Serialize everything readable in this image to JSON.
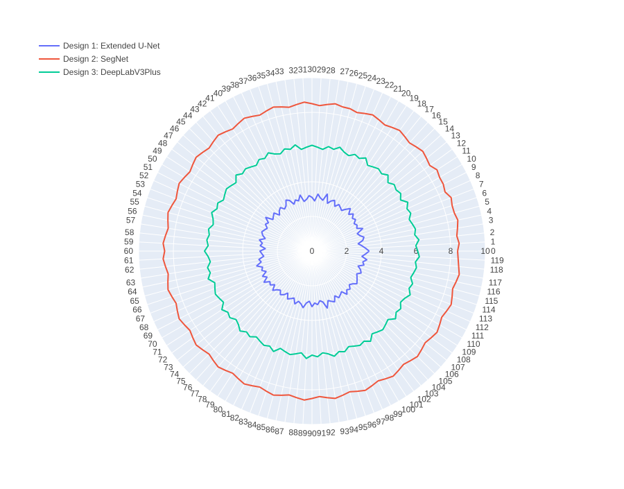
{
  "chart_data": {
    "type": "polar-line",
    "angular_unit": "category index (0-119, counterclockwise from 0 at east)",
    "theta_categories": [
      0,
      1,
      2,
      3,
      4,
      5,
      6,
      7,
      8,
      9,
      10,
      11,
      12,
      13,
      14,
      15,
      16,
      17,
      18,
      19,
      20,
      21,
      22,
      23,
      24,
      25,
      26,
      27,
      28,
      29,
      30,
      31,
      32,
      33,
      34,
      35,
      36,
      37,
      38,
      39,
      40,
      41,
      42,
      43,
      44,
      45,
      46,
      47,
      48,
      49,
      50,
      51,
      52,
      53,
      54,
      55,
      56,
      57,
      58,
      59,
      60,
      61,
      62,
      63,
      64,
      65,
      66,
      67,
      68,
      69,
      70,
      71,
      72,
      73,
      74,
      75,
      76,
      77,
      78,
      79,
      80,
      81,
      82,
      83,
      84,
      85,
      86,
      87,
      88,
      89,
      90,
      91,
      92,
      93,
      94,
      95,
      96,
      97,
      98,
      99,
      100,
      101,
      102,
      103,
      104,
      105,
      106,
      107,
      108,
      109,
      110,
      111,
      112,
      113,
      114,
      115,
      116,
      117,
      118,
      119
    ],
    "radial_range": [
      0,
      10
    ],
    "radial_ticks": [
      "0",
      "2",
      "4",
      "6",
      "8",
      "10"
    ],
    "legend_position": "top-left",
    "grid": true,
    "series": [
      {
        "name": "Design 1: Extended U-Net",
        "color": "#636efa",
        "r": [
          3.3,
          3.1,
          2.9,
          2.7,
          3.0,
          3.1,
          2.9,
          2.8,
          3.2,
          2.9,
          3.0,
          2.9,
          3.1,
          3.0,
          3.2,
          3.0,
          3.3,
          3.1,
          2.9,
          3.0,
          3.1,
          2.9,
          3.2,
          3.1,
          2.9,
          3.4,
          3.0,
          3.1,
          3.3,
          2.9,
          3.1,
          3.2,
          3.0,
          2.9,
          3.3,
          3.0,
          3.1,
          2.9,
          3.2,
          3.3,
          3.0,
          2.9,
          3.1,
          3.0,
          2.8,
          3.1,
          3.0,
          2.9,
          3.3,
          3.0,
          3.1,
          2.9,
          3.0,
          3.1,
          3.0,
          2.8,
          3.1,
          2.9,
          3.0,
          2.7,
          3.0,
          2.9,
          2.8,
          3.1,
          3.0,
          3.3,
          3.0,
          3.1,
          2.9,
          3.2,
          3.0,
          3.3,
          3.0,
          3.1,
          2.9,
          3.2,
          3.0,
          2.9,
          3.1,
          3.0,
          2.8,
          3.1,
          3.0,
          2.9,
          3.2,
          3.0,
          3.1,
          3.3,
          3.0,
          2.9,
          3.2,
          3.0,
          3.1,
          2.9,
          3.0,
          3.4,
          3.0,
          3.1,
          3.2,
          2.9,
          3.1,
          3.0,
          2.9,
          3.2,
          3.0,
          3.1,
          2.9,
          3.0,
          3.2,
          3.1,
          3.0,
          2.9,
          3.1,
          3.0,
          2.8,
          3.1,
          3.0,
          3.2,
          2.9,
          3.1
        ]
      },
      {
        "name": "Design 2: SegNet",
        "color": "#ef553b",
        "r": [
          8.4,
          8.5,
          8.4,
          8.5,
          8.6,
          8.5,
          8.5,
          8.6,
          8.4,
          8.5,
          8.5,
          8.6,
          8.4,
          8.5,
          8.6,
          8.5,
          8.4,
          8.5,
          8.6,
          8.5,
          8.4,
          8.5,
          8.6,
          8.5,
          8.4,
          8.5,
          8.5,
          8.6,
          8.5,
          8.4,
          8.5,
          8.6,
          8.5,
          8.4,
          8.5,
          8.6,
          8.5,
          8.4,
          8.5,
          8.6,
          8.5,
          8.4,
          8.5,
          8.6,
          8.5,
          8.4,
          8.5,
          8.6,
          8.5,
          8.4,
          8.5,
          8.6,
          8.5,
          8.4,
          8.5,
          8.6,
          8.5,
          8.4,
          8.5,
          8.6,
          8.5,
          8.6,
          8.5,
          8.4,
          8.5,
          8.6,
          8.5,
          8.4,
          8.5,
          8.6,
          8.5,
          8.4,
          8.5,
          8.6,
          8.5,
          8.4,
          8.5,
          8.6,
          8.5,
          8.4,
          8.5,
          8.6,
          8.5,
          8.4,
          8.5,
          8.6,
          8.5,
          8.4,
          8.5,
          8.6,
          8.5,
          8.4,
          8.5,
          8.6,
          8.5,
          8.4,
          8.5,
          8.6,
          8.5,
          8.4,
          8.5,
          8.6,
          8.5,
          8.4,
          8.5,
          8.6,
          8.5,
          8.4,
          8.5,
          8.6,
          8.5,
          8.4,
          8.5,
          8.6,
          8.5,
          8.4,
          8.5,
          8.6
        ]
      },
      {
        "name": "Design 3: DeepLabV3Plus",
        "color": "#00cc96",
        "r": [
          6.1,
          6.0,
          6.2,
          6.0,
          6.1,
          6.0,
          5.9,
          6.1,
          6.0,
          6.2,
          5.9,
          6.1,
          6.0,
          6.1,
          5.9,
          6.2,
          6.0,
          6.1,
          6.0,
          5.9,
          6.2,
          6.0,
          6.1,
          5.9,
          6.0,
          6.2,
          6.0,
          6.1,
          5.9,
          6.0,
          6.1,
          6.0,
          5.9,
          6.2,
          6.0,
          6.1,
          5.9,
          6.0,
          6.2,
          6.0,
          6.1,
          5.9,
          6.0,
          6.1,
          6.0,
          6.2,
          5.9,
          6.0,
          6.1,
          6.0,
          5.9,
          6.1,
          6.0,
          6.2,
          6.0,
          5.9,
          6.1,
          6.0,
          6.1,
          6.0,
          6.2,
          6.0,
          5.9,
          6.1,
          6.0,
          6.2,
          5.9,
          6.0,
          6.1,
          6.0,
          5.9,
          6.2,
          6.0,
          6.1,
          5.9,
          6.0,
          6.2,
          6.0,
          6.1,
          5.9,
          6.0,
          6.1,
          6.0,
          6.2,
          5.9,
          6.0,
          6.1,
          6.0,
          5.9,
          6.2,
          6.0,
          6.1,
          5.9,
          6.0,
          6.2,
          6.0,
          6.1,
          5.9,
          6.0,
          6.1,
          6.0,
          6.2,
          5.9,
          6.0,
          6.1,
          6.0,
          5.9,
          6.2,
          6.0,
          6.1,
          5.9,
          6.0,
          6.2,
          6.0,
          6.1,
          5.9,
          6.0,
          6.1,
          6.0,
          6.2
        ]
      }
    ]
  },
  "colors": {
    "plot_background": "#e5ecf6",
    "grid": "#ffffff",
    "tick_text": "#444444"
  }
}
